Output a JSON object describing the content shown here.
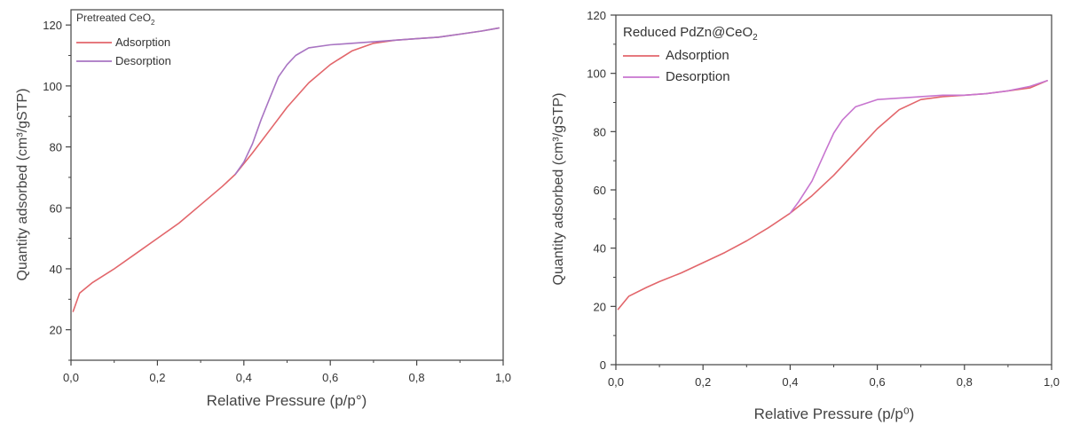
{
  "chart_data": [
    {
      "type": "line",
      "title": "Pretreated CeO",
      "title_subscript": "2",
      "xlabel": "Relative Pressure (p/p°)",
      "ylabel": "Quantity adsorbed (cm³/gSTP)",
      "xlim": [
        0.0,
        1.0
      ],
      "ylim": [
        10,
        125
      ],
      "x_ticks": [
        0.0,
        0.2,
        0.4,
        0.6,
        0.8,
        1.0
      ],
      "x_tick_labels": [
        "0,0",
        "0,2",
        "0,4",
        "0,6",
        "0,8",
        "1,0"
      ],
      "y_ticks": [
        20,
        40,
        60,
        80,
        100,
        120
      ],
      "y_tick_labels": [
        "20",
        "40",
        "60",
        "80",
        "100",
        "120"
      ],
      "legend_position": "top-left",
      "grid": false,
      "series": [
        {
          "name": "Adsorption",
          "color": "#e2666b",
          "x": [
            0.005,
            0.02,
            0.05,
            0.1,
            0.15,
            0.2,
            0.25,
            0.3,
            0.35,
            0.38,
            0.42,
            0.46,
            0.5,
            0.55,
            0.6,
            0.65,
            0.7,
            0.75,
            0.8,
            0.85,
            0.9,
            0.95,
            0.99
          ],
          "y": [
            26,
            32,
            35.5,
            40,
            45,
            50,
            55,
            61,
            67,
            71,
            78,
            85.5,
            93,
            101,
            107,
            111.5,
            114,
            115,
            115.5,
            116,
            117,
            118,
            119
          ]
        },
        {
          "name": "Desorption",
          "color": "#a874c2",
          "x": [
            0.99,
            0.95,
            0.9,
            0.85,
            0.8,
            0.75,
            0.7,
            0.65,
            0.6,
            0.55,
            0.52,
            0.5,
            0.48,
            0.46,
            0.44,
            0.42,
            0.4,
            0.38
          ],
          "y": [
            119,
            118,
            117,
            116,
            115.5,
            115,
            114.5,
            114,
            113.5,
            112.5,
            110,
            107,
            103,
            96,
            89,
            81,
            75,
            71
          ]
        }
      ]
    },
    {
      "type": "line",
      "title": "Reduced PdZn@CeO",
      "title_subscript": "2",
      "xlabel": "Relative Pressure (p/p⁰)",
      "ylabel": "Quantity adsorbed (cm³/gSTP)",
      "xlim": [
        0.0,
        1.0
      ],
      "ylim": [
        0,
        120
      ],
      "x_ticks": [
        0.0,
        0.2,
        0.4,
        0.6,
        0.8,
        1.0
      ],
      "x_tick_labels": [
        "0,0",
        "0,2",
        "0,4",
        "0,6",
        "0,8",
        "1,0"
      ],
      "y_ticks": [
        0,
        20,
        40,
        60,
        80,
        100,
        120
      ],
      "y_tick_labels": [
        "0",
        "20",
        "40",
        "60",
        "80",
        "100",
        "120"
      ],
      "legend_position": "top-left",
      "grid": false,
      "series": [
        {
          "name": "Adsorption",
          "color": "#e2666b",
          "x": [
            0.005,
            0.03,
            0.07,
            0.1,
            0.15,
            0.2,
            0.25,
            0.3,
            0.35,
            0.4,
            0.45,
            0.5,
            0.55,
            0.6,
            0.65,
            0.7,
            0.75,
            0.8,
            0.85,
            0.9,
            0.95,
            0.99
          ],
          "y": [
            19,
            23.5,
            26.5,
            28.5,
            31.5,
            35,
            38.5,
            42.5,
            47,
            52,
            58,
            65,
            73,
            81,
            87.5,
            91,
            92,
            92.5,
            93,
            94,
            95,
            97.5
          ]
        },
        {
          "name": "Desorption",
          "color": "#c775cf",
          "x": [
            0.99,
            0.95,
            0.9,
            0.85,
            0.8,
            0.75,
            0.7,
            0.65,
            0.6,
            0.55,
            0.52,
            0.5,
            0.48,
            0.45,
            0.42,
            0.4
          ],
          "y": [
            97.5,
            95.5,
            94,
            93,
            92.5,
            92.5,
            92,
            91.5,
            91,
            88.5,
            84,
            79.5,
            73,
            63,
            56,
            52
          ]
        }
      ]
    }
  ]
}
